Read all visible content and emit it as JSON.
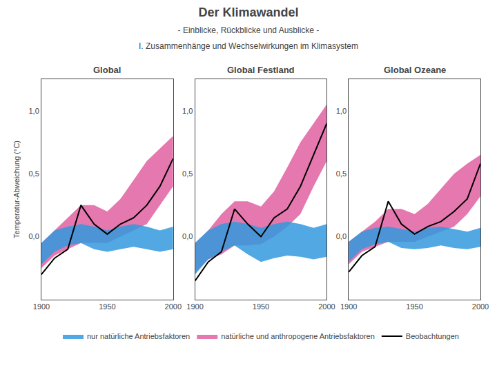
{
  "title": "Der Klimawandel",
  "subtitle": [
    "- Einblicke, Rückblicke und Ausblicke -",
    "I. Zusammenhänge und Wechselwirkungen im Klimasystem"
  ],
  "chart_data": [
    {
      "type": "line",
      "title": "Global",
      "ylabel": "Temperatur-Abweichung (°C)",
      "x": [
        1900,
        1910,
        1920,
        1930,
        1940,
        1950,
        1960,
        1970,
        1980,
        1990,
        2000
      ],
      "series": [
        {
          "name": "nur natürliche Antriebsfaktoren",
          "type": "band",
          "color": "#3399dd",
          "low": [
            -0.22,
            -0.12,
            -0.07,
            -0.05,
            -0.1,
            -0.12,
            -0.1,
            -0.08,
            -0.1,
            -0.12,
            -0.1
          ],
          "high": [
            -0.05,
            0.05,
            0.08,
            0.1,
            0.08,
            0.05,
            0.08,
            0.1,
            0.08,
            0.05,
            0.08
          ]
        },
        {
          "name": "natürliche und anthropogene Antriebsfaktoren",
          "type": "band",
          "color": "#e060a0",
          "low": [
            -0.25,
            -0.15,
            -0.1,
            -0.05,
            -0.05,
            -0.05,
            0.0,
            0.05,
            0.1,
            0.25,
            0.4
          ],
          "high": [
            -0.05,
            0.05,
            0.15,
            0.25,
            0.25,
            0.2,
            0.3,
            0.45,
            0.6,
            0.7,
            0.8
          ]
        },
        {
          "name": "Beobachtungen",
          "type": "line",
          "color": "#000000",
          "values": [
            -0.3,
            -0.17,
            -0.1,
            0.25,
            0.1,
            0.02,
            0.1,
            0.15,
            0.25,
            0.4,
            0.62
          ]
        }
      ],
      "xlim": [
        1900,
        2000
      ],
      "xticks": [
        1900,
        1950,
        2000
      ],
      "ylim": [
        -0.5,
        1.25
      ],
      "yticks": [
        {
          "value": 0.0,
          "label": "0,0"
        },
        {
          "value": 0.5,
          "label": "0,5"
        },
        {
          "value": 1.0,
          "label": "1,0"
        }
      ],
      "grid": false,
      "legend": "bottom"
    },
    {
      "type": "line",
      "title": "Global Festland",
      "x": [
        1900,
        1910,
        1920,
        1930,
        1940,
        1950,
        1960,
        1970,
        1980,
        1990,
        2000
      ],
      "series": [
        {
          "name": "nur natürliche Antriebsfaktoren",
          "type": "band",
          "color": "#3399dd",
          "low": [
            -0.3,
            -0.18,
            -0.12,
            -0.07,
            -0.14,
            -0.2,
            -0.17,
            -0.15,
            -0.16,
            -0.18,
            -0.16
          ],
          "high": [
            -0.05,
            0.05,
            0.1,
            0.12,
            0.1,
            0.07,
            0.1,
            0.12,
            0.1,
            0.07,
            0.1
          ]
        },
        {
          "name": "natürliche und anthropogene Antriebsfaktoren",
          "type": "band",
          "color": "#e060a0",
          "low": [
            -0.28,
            -0.18,
            -0.14,
            -0.07,
            -0.07,
            -0.06,
            0.0,
            0.08,
            0.18,
            0.4,
            0.6
          ],
          "high": [
            -0.05,
            0.05,
            0.18,
            0.28,
            0.28,
            0.24,
            0.36,
            0.55,
            0.75,
            0.9,
            1.05
          ]
        },
        {
          "name": "Beobachtungen",
          "type": "line",
          "color": "#000000",
          "values": [
            -0.35,
            -0.2,
            -0.12,
            0.22,
            0.1,
            0.0,
            0.15,
            0.22,
            0.4,
            0.65,
            0.9
          ]
        }
      ],
      "xlim": [
        1900,
        2000
      ],
      "xticks": [
        1900,
        1950,
        2000
      ],
      "ylim": [
        -0.5,
        1.25
      ],
      "yticks": [
        {
          "value": 0.0,
          "label": "0,0"
        },
        {
          "value": 0.5,
          "label": "0,5"
        },
        {
          "value": 1.0,
          "label": "1,0"
        }
      ],
      "grid": false
    },
    {
      "type": "line",
      "title": "Global Ozeane",
      "x": [
        1900,
        1910,
        1920,
        1930,
        1940,
        1950,
        1960,
        1970,
        1980,
        1990,
        2000
      ],
      "series": [
        {
          "name": "nur natürliche Antriebsfaktoren",
          "type": "band",
          "color": "#3399dd",
          "low": [
            -0.2,
            -0.1,
            -0.06,
            -0.04,
            -0.09,
            -0.1,
            -0.09,
            -0.07,
            -0.09,
            -0.1,
            -0.08
          ],
          "high": [
            -0.04,
            0.04,
            0.07,
            0.08,
            0.06,
            0.04,
            0.07,
            0.08,
            0.06,
            0.04,
            0.07
          ]
        },
        {
          "name": "natürliche und anthropogene Antriebsfaktoren",
          "type": "band",
          "color": "#e060a0",
          "low": [
            -0.22,
            -0.12,
            -0.08,
            -0.04,
            -0.04,
            -0.04,
            0.0,
            0.04,
            0.08,
            0.18,
            0.32
          ],
          "high": [
            -0.04,
            0.04,
            0.12,
            0.22,
            0.22,
            0.18,
            0.26,
            0.38,
            0.5,
            0.58,
            0.65
          ]
        },
        {
          "name": "Beobachtungen",
          "type": "line",
          "color": "#000000",
          "values": [
            -0.28,
            -0.15,
            -0.08,
            0.28,
            0.1,
            0.02,
            0.08,
            0.12,
            0.2,
            0.3,
            0.58
          ]
        }
      ],
      "xlim": [
        1900,
        2000
      ],
      "xticks": [
        1900,
        1950,
        2000
      ],
      "ylim": [
        -0.5,
        1.25
      ],
      "yticks": [
        {
          "value": 0.0,
          "label": "0,0"
        },
        {
          "value": 0.5,
          "label": "0,5"
        },
        {
          "value": 1.0,
          "label": "1,0"
        }
      ],
      "grid": false
    }
  ]
}
